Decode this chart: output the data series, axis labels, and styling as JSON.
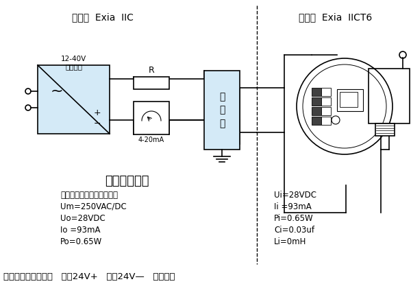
{
  "bg_color": "#ffffff",
  "line_color": "#000000",
  "safe_zone_label": "安全区  Exia  IIC",
  "danger_zone_label": "危险区  Exia  IICT6",
  "diagram_title": "本安型接线图",
  "power_label1": "12-40V",
  "power_label2": "直流电源",
  "current_label": "4-20mA",
  "resistor_label": "R",
  "safety_barrier_label": "安\n全\n栅",
  "left_params_line1": "（参见安全栅适用说明书）",
  "left_params_line2": "Um=250VAC/DC",
  "left_params_line3": "Uo=28VDC",
  "left_params_line4": "Io =93mA",
  "left_params_line5": "Po=0.65W",
  "right_params_line1": "Ui=28VDC",
  "right_params_line2": "Ii =93mA",
  "right_params_line3": "Pi=0.65W",
  "right_params_line4": "Ci=0.03uf",
  "right_params_line5": "Li=0mH",
  "note_part1": "注：一体化接线方式   红：24V+   蓝：24V—   黑：接地",
  "power_fill": "#d4eaf7",
  "barrier_fill": "#d4eaf7"
}
